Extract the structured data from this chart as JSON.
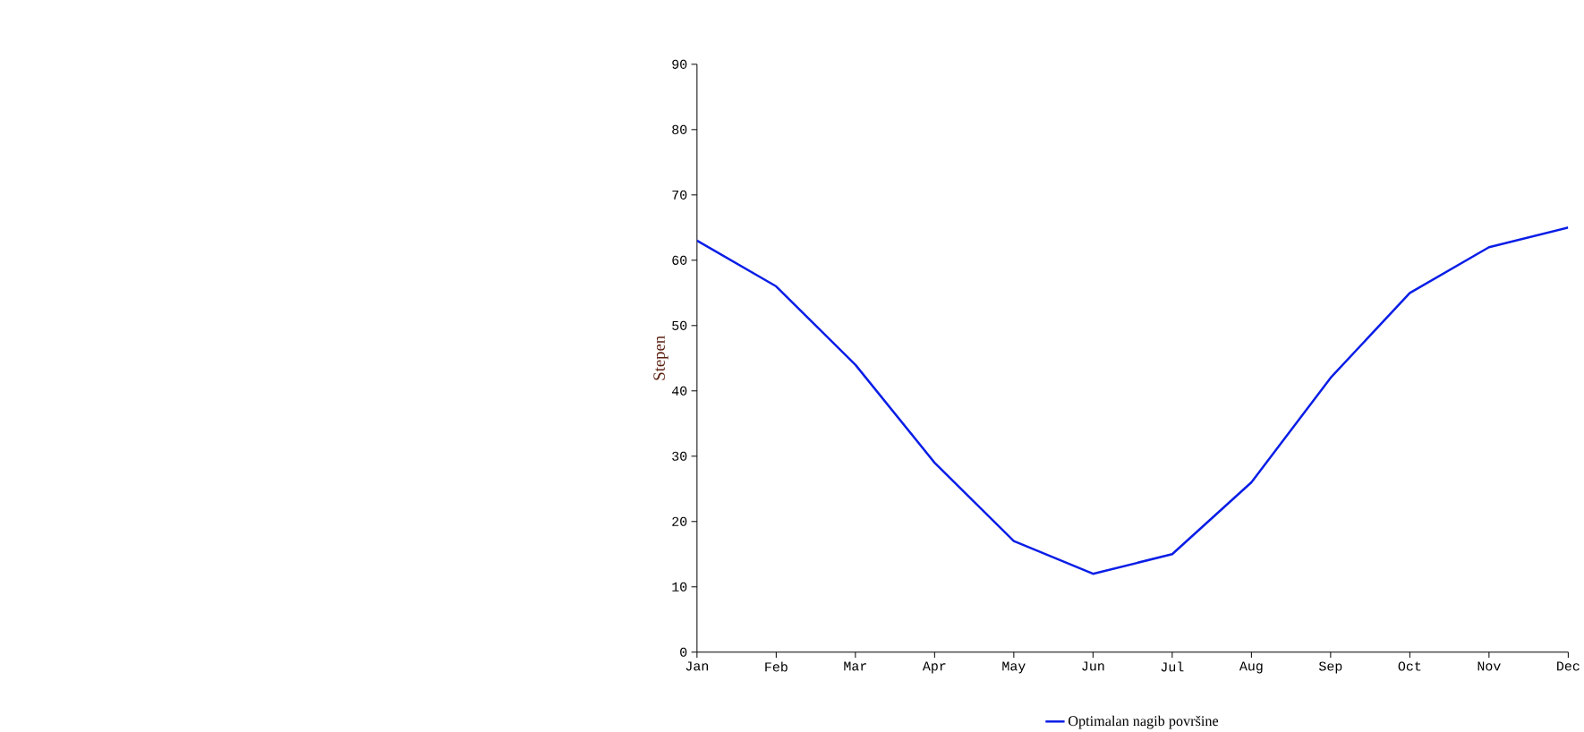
{
  "chart_data": {
    "type": "line",
    "ylabel": "Stepen",
    "categories": [
      "Jan",
      "Feb",
      "Mar",
      "Apr",
      "May",
      "Jun",
      "Jul",
      "Aug",
      "Sep",
      "Oct",
      "Nov",
      "Dec"
    ],
    "series": [
      {
        "name": "Optimalan nagib površine",
        "color": "#0a1ee6",
        "values": [
          63,
          56,
          44,
          29,
          17,
          12,
          15,
          26,
          42,
          55,
          62,
          65
        ]
      }
    ],
    "ylim": [
      0,
      90
    ],
    "yticks": [
      0,
      10,
      20,
      30,
      40,
      50,
      60,
      70,
      80,
      90
    ],
    "grid": false,
    "legend": "bottom",
    "marker": "none",
    "line_style": "solid"
  }
}
